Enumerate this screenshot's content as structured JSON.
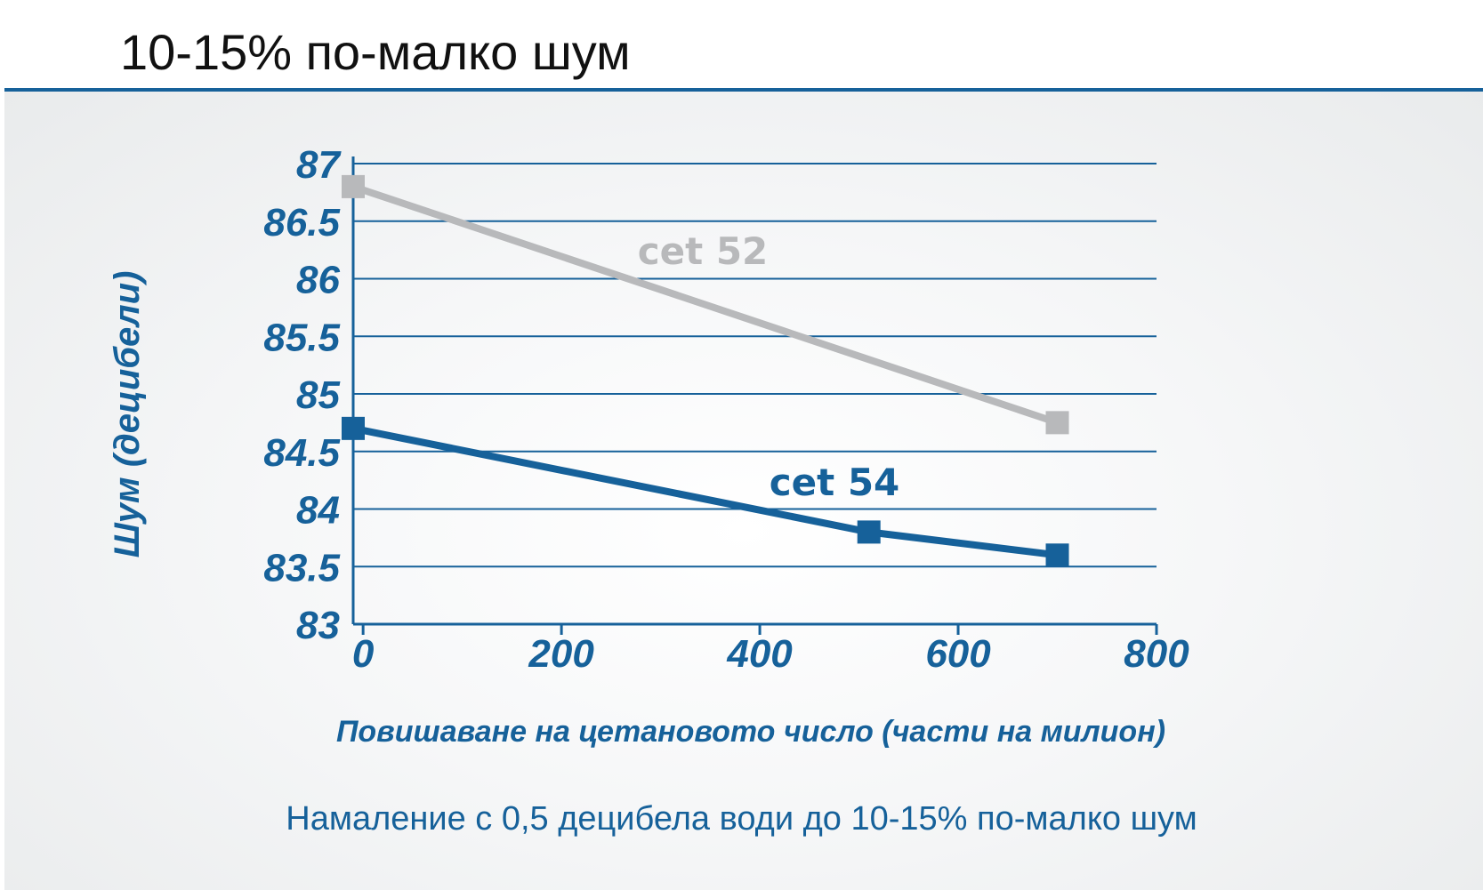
{
  "title": "10-15% по-малко шум",
  "footnote": "Намаление с 0,5 децибела води до 10-15% по-малко шум",
  "colors": {
    "accent": "#16619a",
    "series_gray": "#b8b9bb",
    "series_blue": "#16619a",
    "grid": "#16619a"
  },
  "chart_data": {
    "type": "line",
    "xlabel": "Повишаване на цетановото число (части на милион)",
    "ylabel": "Шум (децибели)",
    "xlim": [
      -10,
      800
    ],
    "ylim": [
      83,
      87
    ],
    "x_ticks": [
      "0",
      "200",
      "400",
      "600",
      "800"
    ],
    "y_ticks": [
      "83",
      "83.5",
      "84",
      "84.5",
      "85",
      "85.5",
      "86",
      "86.5",
      "87"
    ],
    "grid": true,
    "series": [
      {
        "name": "cet 52",
        "color": "#b8b9bb",
        "x": [
          -10,
          700
        ],
        "y": [
          86.8,
          84.75
        ]
      },
      {
        "name": "cet 54",
        "color": "#16619a",
        "x": [
          -10,
          510,
          700
        ],
        "y": [
          84.7,
          83.8,
          83.6
        ]
      }
    ]
  }
}
